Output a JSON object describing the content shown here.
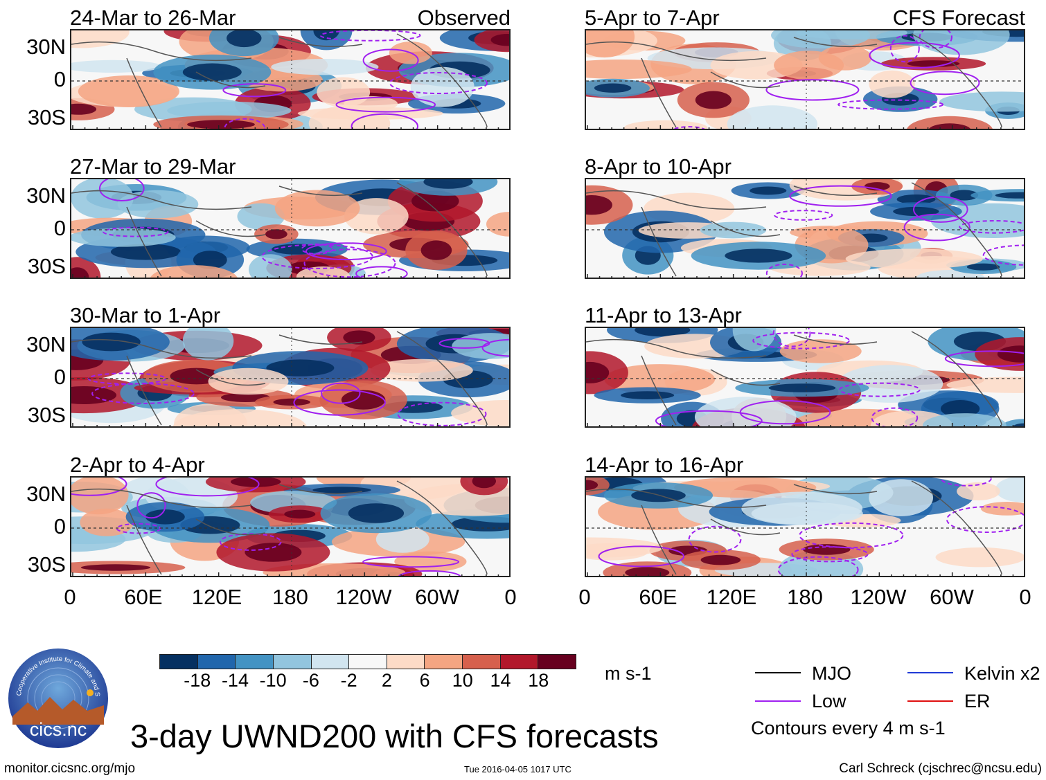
{
  "chart_data": {
    "type": "heatmap",
    "variable": "UWND200",
    "title": "3-day UWND200 with CFS forecasts",
    "units": "m s-1",
    "color_scale": {
      "ticks": [
        "-18",
        "-14",
        "-10",
        "-6",
        "-2",
        "2",
        "6",
        "10",
        "14",
        "18"
      ],
      "colors": [
        "#053061",
        "#2166ac",
        "#4393c3",
        "#92c5de",
        "#d1e5f0",
        "#f7f7f7",
        "#fddbc7",
        "#f4a582",
        "#d6604d",
        "#b2182b",
        "#67001f"
      ]
    },
    "y_ticks": [
      "30N",
      "0",
      "30S"
    ],
    "x_ticks": [
      "0",
      "60E",
      "120E",
      "180",
      "120W",
      "60W",
      "0"
    ],
    "columns": [
      {
        "label": "Observed",
        "panels": [
          {
            "title": "24-Mar to 26-Mar"
          },
          {
            "title": "27-Mar to 29-Mar"
          },
          {
            "title": "30-Mar to 1-Apr"
          },
          {
            "title": "2-Apr to 4-Apr"
          }
        ]
      },
      {
        "label": "CFS Forecast",
        "panels": [
          {
            "title": "5-Apr to 7-Apr"
          },
          {
            "title": "8-Apr to 10-Apr"
          },
          {
            "title": "11-Apr to 13-Apr"
          },
          {
            "title": "14-Apr to 16-Apr"
          }
        ]
      }
    ],
    "legend": [
      {
        "label": "MJO",
        "color": "#000000"
      },
      {
        "label": "Kelvin x2",
        "color": "#1f3ad6"
      },
      {
        "label": "Low",
        "color": "#a020f0"
      },
      {
        "label": "ER",
        "color": "#e01010"
      }
    ],
    "contour_note": "Contours every 4 m s-1"
  },
  "logo_text": "cics.nc",
  "logo_arc_text": "Cooperative Institute for Climate and Satellites",
  "footer": {
    "left": "monitor.cicsnc.org/mjo",
    "center": "Tue 2016-04-05 1017 UTC",
    "right": "Carl Schreck (cjschrec@ncsu.edu)"
  }
}
